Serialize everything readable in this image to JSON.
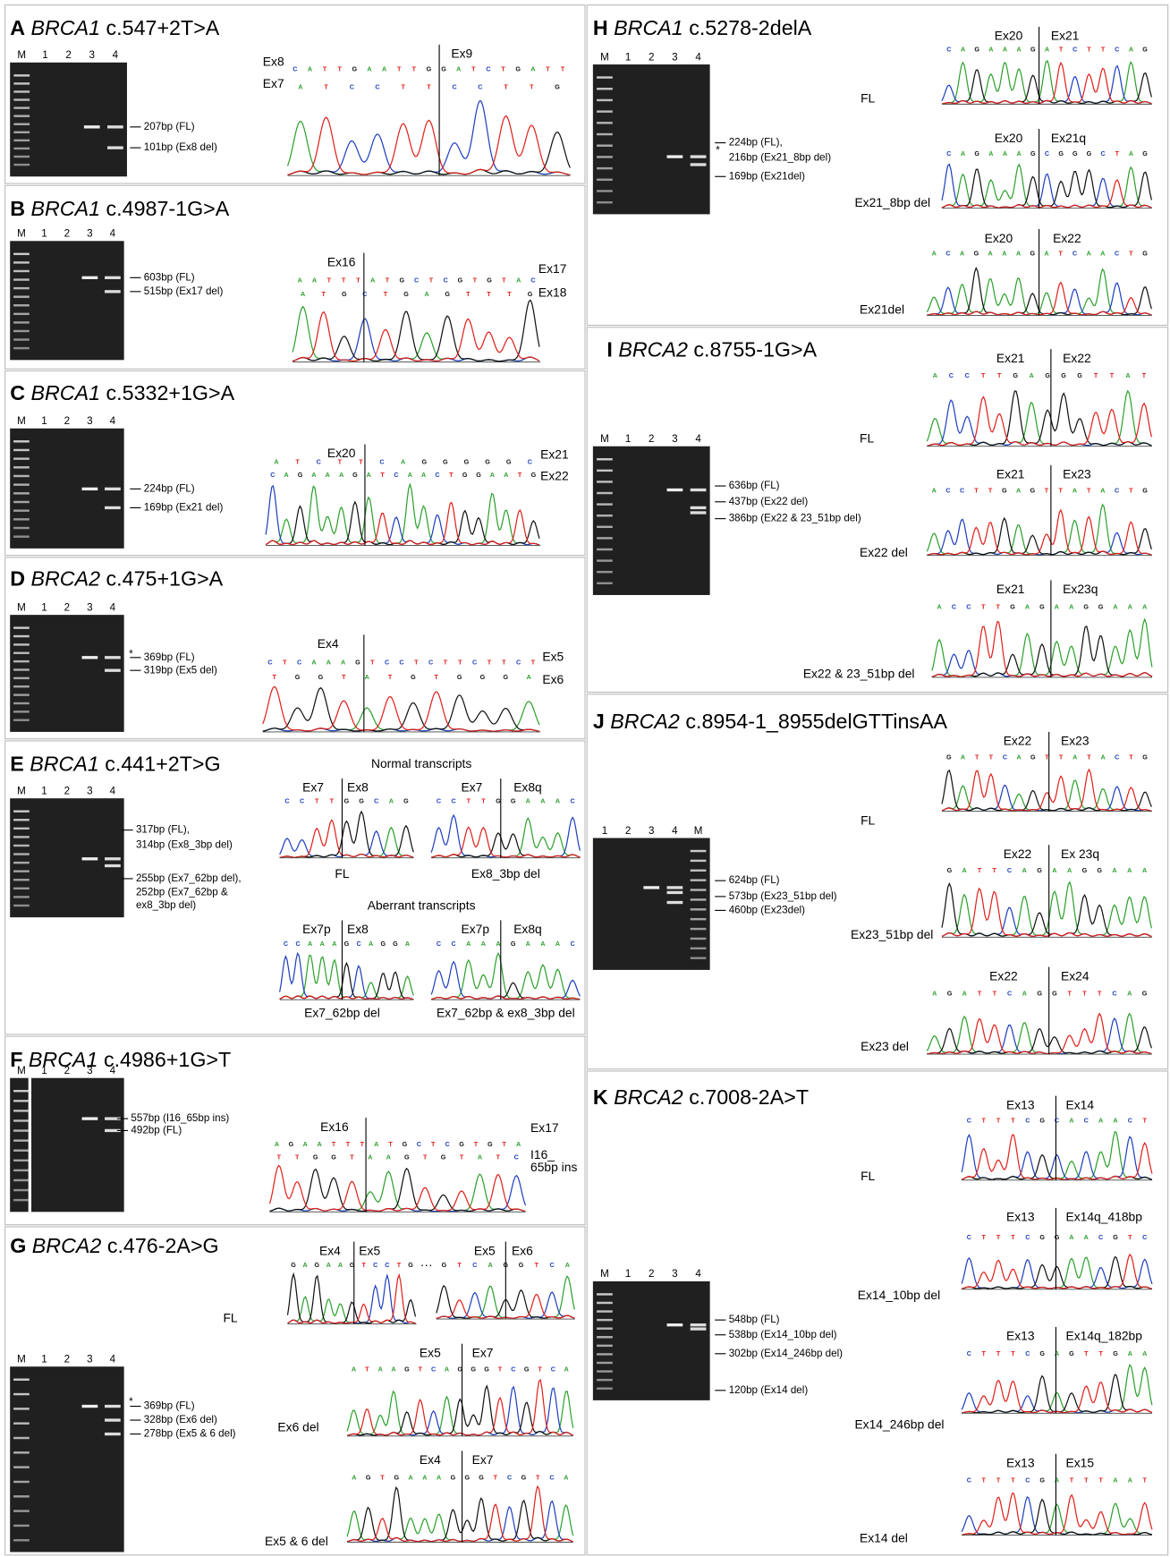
{
  "panels": [
    {
      "letter": "A",
      "gene": "BRCA1",
      "variant": "c.547+2T>A",
      "lanes": [
        "M",
        "1",
        "2",
        "3",
        "4"
      ],
      "bands": [
        "207bp (FL)",
        "101bp (Ex8 del)"
      ],
      "chromatograms": [
        {
          "top_labels": [
            "Ex9"
          ],
          "side_labels": [
            "Ex8",
            "Ex7"
          ],
          "sequences": [
            "CATTGAATTGGATCTGATT",
            "ATCCTTCCTTG"
          ]
        }
      ]
    },
    {
      "letter": "B",
      "gene": "BRCA1",
      "variant": "c.4987-1G>A",
      "lanes": [
        "M",
        "1",
        "2",
        "3",
        "4"
      ],
      "bands": [
        "603bp (FL)",
        "515bp (Ex17 del)"
      ],
      "chromatograms": [
        {
          "top_labels": [
            "Ex16"
          ],
          "side_labels": [
            "Ex17",
            "Ex18"
          ],
          "sequences": [
            "AATTTATGCTCGTGTAC",
            "ATGCTGAGTTTG"
          ]
        }
      ]
    },
    {
      "letter": "C",
      "gene": "BRCA1",
      "variant": "c.5332+1G>A",
      "lanes": [
        "M",
        "1",
        "2",
        "3",
        "4"
      ],
      "bands": [
        "224bp (FL)",
        "169bp (Ex21 del)"
      ],
      "chromatograms": [
        {
          "top_labels": [
            "Ex20"
          ],
          "side_labels": [
            "Ex21",
            "Ex22"
          ],
          "sequences": [
            "ATCTTCAGGGGGC",
            "CAGAAAGATCAACTGGAATG"
          ]
        }
      ]
    },
    {
      "letter": "D",
      "gene": "BRCA2",
      "variant": "c.475+1G>A",
      "lanes": [
        "M",
        "1",
        "2",
        "3",
        "4"
      ],
      "marker": "*",
      "bands": [
        "369bp (FL)",
        "319bp (Ex5 del)"
      ],
      "chromatograms": [
        {
          "top_labels": [
            "Ex4"
          ],
          "side_labels": [
            "Ex5",
            "Ex6"
          ],
          "sequences": [
            "CTCAAAGTCCTCTTCTTCT",
            "TGGTATGTGGGA"
          ]
        }
      ]
    },
    {
      "letter": "E",
      "gene": "BRCA1",
      "variant": "c.441+2T>G",
      "lanes": [
        "M",
        "1",
        "2",
        "3",
        "4"
      ],
      "bands": [
        "317bp (FL),",
        "314bp (Ex8_3bp del)",
        "255bp (Ex7_62bp del),",
        "252bp (Ex7_62bp &",
        "ex8_3bp del)"
      ],
      "headings": [
        "Normal transcripts",
        "Aberrant transcripts"
      ],
      "chromatograms": [
        {
          "top_labels": [
            "Ex7",
            "Ex8"
          ],
          "sequences": [
            "CCTTGGCAG"
          ],
          "label": "FL"
        },
        {
          "top_labels": [
            "Ex7",
            "Ex8q"
          ],
          "sequences": [
            "CCTTGGAAAC"
          ],
          "label": "Ex8_3bp del"
        },
        {
          "top_labels": [
            "Ex7p",
            "Ex8"
          ],
          "sequences": [
            "CCAAAGCAGGA"
          ],
          "label": "Ex7_62bp del"
        },
        {
          "top_labels": [
            "Ex7p",
            "Ex8q"
          ],
          "sequences": [
            "CCAAAGAAAC"
          ],
          "label": "Ex7_62bp & ex8_3bp del"
        }
      ]
    },
    {
      "letter": "F",
      "gene": "BRCA1",
      "variant": "c.4986+1G>T",
      "lanes": [
        "M",
        "1",
        "2",
        "3",
        "4"
      ],
      "bands": [
        "557bp (I16_65bp ins)",
        "492bp (FL)"
      ],
      "chromatograms": [
        {
          "top_labels": [
            "Ex16"
          ],
          "side_labels": [
            "Ex17",
            "I16_",
            "65bp ins"
          ],
          "sequences": [
            "AGAATTTATGCTCGTGTA",
            "TTGGTAAGTGTATC"
          ]
        }
      ]
    },
    {
      "letter": "G",
      "gene": "BRCA2",
      "variant": "c.476-2A>G",
      "lanes": [
        "M",
        "1",
        "2",
        "3",
        "4"
      ],
      "marker": "*",
      "bands": [
        "369bp (FL)",
        "328bp (Ex6 del)",
        "278bp (Ex5 & 6 del)"
      ],
      "chromatograms": [
        {
          "top_labels": [
            "Ex4",
            "Ex5"
          ],
          "sequences": [
            "GAGAAGTCCTG"
          ],
          "label": "FL"
        },
        {
          "top_labels": [
            "Ex5",
            "Ex6"
          ],
          "sequences": [
            "GTCAGGTCA"
          ],
          "gap": "···"
        },
        {
          "top_labels": [
            "Ex5",
            "Ex7"
          ],
          "sequences": [
            "ATAAGTCAGGGTCGTCA"
          ],
          "label": "Ex6 del"
        },
        {
          "top_labels": [
            "Ex4",
            "Ex7"
          ],
          "sequences": [
            "AGTGAAAGGGTCGTCA"
          ],
          "label": "Ex5 & 6 del"
        }
      ]
    },
    {
      "letter": "H",
      "gene": "BRCA1",
      "variant": "c.5278-2delA",
      "lanes": [
        "M",
        "1",
        "2",
        "3",
        "4"
      ],
      "marker": "*",
      "bands": [
        "224bp (FL),",
        "216bp (Ex21_8bp del)",
        "169bp (Ex21del)"
      ],
      "chromatograms": [
        {
          "top_labels": [
            "Ex20",
            "Ex21"
          ],
          "sequences": [
            "CAGAAAGATCTTCAG"
          ],
          "label": "FL"
        },
        {
          "top_labels": [
            "Ex20",
            "Ex21q"
          ],
          "sequences": [
            "CAGAAAGCGGGCTAG"
          ],
          "label": "Ex21_8bp del"
        },
        {
          "top_labels": [
            "Ex20",
            "Ex22"
          ],
          "sequences": [
            "ACAGAAAGATCAACTG"
          ],
          "label": "Ex21del"
        }
      ]
    },
    {
      "letter": "I",
      "gene": "BRCA2",
      "variant": "c.8755-1G>A",
      "lanes": [
        "M",
        "1",
        "2",
        "3",
        "4"
      ],
      "bands": [
        "636bp (FL)",
        "437bp (Ex22 del)",
        "386bp (Ex22 & 23_51bp del)"
      ],
      "chromatograms": [
        {
          "top_labels": [
            "Ex21",
            "Ex22"
          ],
          "sequences": [
            "ACCTTGAGGGTTAT"
          ],
          "label": "FL"
        },
        {
          "top_labels": [
            "Ex21",
            "Ex23"
          ],
          "sequences": [
            "ACCTTGAGTTATACTG"
          ],
          "label": "Ex22 del"
        },
        {
          "top_labels": [
            "Ex21",
            "Ex23q"
          ],
          "sequences": [
            "ACCTTGAGAAGGAAA"
          ],
          "label": "Ex22 & 23_51bp del"
        }
      ]
    },
    {
      "letter": "J",
      "gene": "BRCA2",
      "variant": "c.8954-1_8955delGTTinsAA",
      "lanes": [
        "1",
        "2",
        "3",
        "4",
        "M"
      ],
      "bands": [
        "624bp (FL)",
        "573bp (Ex23_51bp del)",
        "460bp (Ex23del)"
      ],
      "chromatograms": [
        {
          "top_labels": [
            "Ex22",
            "Ex23"
          ],
          "sequences": [
            "GATTCAGTTATACTG"
          ],
          "label": "FL"
        },
        {
          "top_labels": [
            "Ex22",
            "Ex 23q"
          ],
          "sequences": [
            "GATTCAGAAGGAAA"
          ],
          "label": "Ex23_51bp del"
        },
        {
          "top_labels": [
            "Ex22",
            "Ex24"
          ],
          "sequences": [
            "AGATTCAGGTTTCAG"
          ],
          "label": "Ex23 del"
        }
      ]
    },
    {
      "letter": "K",
      "gene": "BRCA2",
      "variant": "c.7008-2A>T",
      "lanes": [
        "M",
        "1",
        "2",
        "3",
        "4"
      ],
      "bands": [
        "548bp (FL)",
        "538bp (Ex14_10bp del)",
        "302bp (Ex14_246bp del)",
        "120bp (Ex14 del)"
      ],
      "chromatograms": [
        {
          "top_labels": [
            "Ex13",
            "Ex14"
          ],
          "sequences": [
            "CTTTCGCACAACT"
          ],
          "label": "FL"
        },
        {
          "top_labels": [
            "Ex13",
            "Ex14q_418bp"
          ],
          "sequences": [
            "CTTTCGGAACGTC"
          ],
          "label": "Ex14_10bp del"
        },
        {
          "top_labels": [
            "Ex13",
            "Ex14q_182bp"
          ],
          "sequences": [
            "CTTTCGAGTTGAA"
          ],
          "label": "Ex14_246bp del"
        },
        {
          "top_labels": [
            "Ex13",
            "Ex15"
          ],
          "sequences": [
            "CTTTCGATTTAAT"
          ],
          "label": "Ex14 del"
        }
      ]
    }
  ]
}
